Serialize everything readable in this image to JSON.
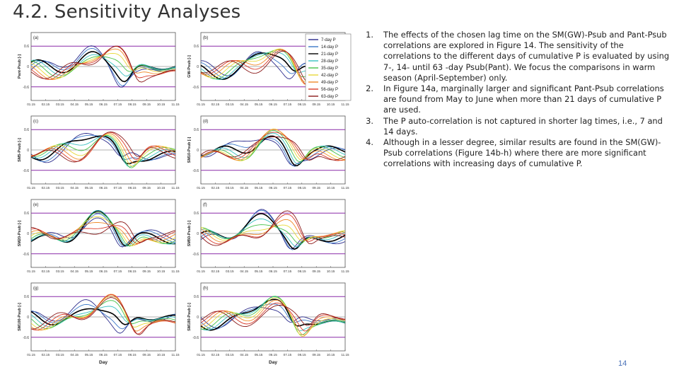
{
  "slide": {
    "title": "4.2. Sensitivity Analyses",
    "page_number": "14"
  },
  "notes": [
    {
      "num": "1.",
      "text": "The effects of the chosen lag time on the SM(GW)-Psub and Pant-Psub correlations are explored in Figure 14. The sensitivity of the correlations to the different days of cumulative P is evaluated by using 7-, 14- until 63 -day Psub(Pant). We focus the comparisons in warm season (April-September) only."
    },
    {
      "num": "2.",
      "text": "In Figure 14a, marginally larger and significant Pant-Psub correlations are found from May to June when more than 21 days of cumulative P are used."
    },
    {
      "num": "3.",
      "text": "The P auto-correlation is not captured in shorter lag times, i.e., 7 and 14 days."
    },
    {
      "num": "4.",
      "text": "Although in a lesser degree, similar results are found in the SM(GW)-Psub correlations (Figure 14b-h) where there are more significant correlations with increasing days of cumulative P."
    }
  ],
  "figure": {
    "xlabel": "Day",
    "xticks": [
      "01.15",
      "02.15",
      "03.15",
      "04.15",
      "05.15",
      "06.15",
      "07.15",
      "08.15",
      "09.15",
      "10.15",
      "11.15"
    ],
    "legend": [
      "7-day P",
      "14-day P",
      "21-day P",
      "28-day P",
      "35-day P",
      "42-day P",
      "49-day P",
      "56-day P",
      "63-day P"
    ],
    "legend_colors": [
      "#2b2b8c",
      "#3a78c8",
      "#000000",
      "#39c0c0",
      "#47c24a",
      "#e8d93a",
      "#f08a2a",
      "#d93a2a",
      "#8b1a1a"
    ],
    "panels": [
      {
        "label": "(a)",
        "ylabel": "Pant-Psub [-]"
      },
      {
        "label": "(b)",
        "ylabel": "GW-Psub [-]"
      },
      {
        "label": "(c)",
        "ylabel": "SM5-Psub [-]"
      },
      {
        "label": "(d)",
        "ylabel": "SM10-Psub [-]"
      },
      {
        "label": "(e)",
        "ylabel": "SM20-Psub [-]"
      },
      {
        "label": "(f)",
        "ylabel": "SM50-Psub [-]"
      },
      {
        "label": "(g)",
        "ylabel": "SM100-Psub [-]"
      },
      {
        "label": "(h)",
        "ylabel": "SM180-Psub [-]"
      }
    ],
    "yticks": [
      "0.6",
      "0",
      "-0.6"
    ],
    "sig_color": "#8a2aa8"
  }
}
